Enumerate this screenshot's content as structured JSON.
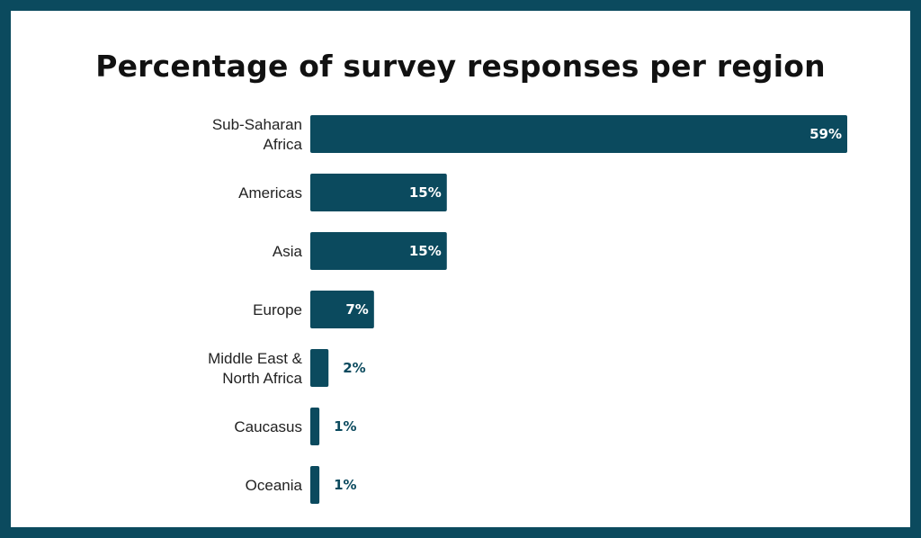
{
  "chart_data": {
    "type": "bar",
    "orientation": "horizontal",
    "title": "Percentage of survey responses per region",
    "categories": [
      [
        "Sub-Saharan",
        "Africa"
      ],
      [
        "Americas"
      ],
      [
        "Asia"
      ],
      [
        "Europe"
      ],
      [
        "Middle East &",
        "North Africa"
      ],
      [
        "Caucasus"
      ],
      [
        "Oceania"
      ]
    ],
    "values": [
      59,
      15,
      15,
      7,
      2,
      1,
      1
    ],
    "value_labels": [
      "59%",
      "15%",
      "15%",
      "7%",
      "2%",
      "1%",
      "1%"
    ],
    "xlim": [
      0,
      59
    ],
    "grid": false,
    "colors": {
      "bar": "#0b4a5e",
      "frame": "#0b4a5e",
      "label_inside": "#ffffff",
      "label_outside": "#0b4a5e"
    }
  }
}
